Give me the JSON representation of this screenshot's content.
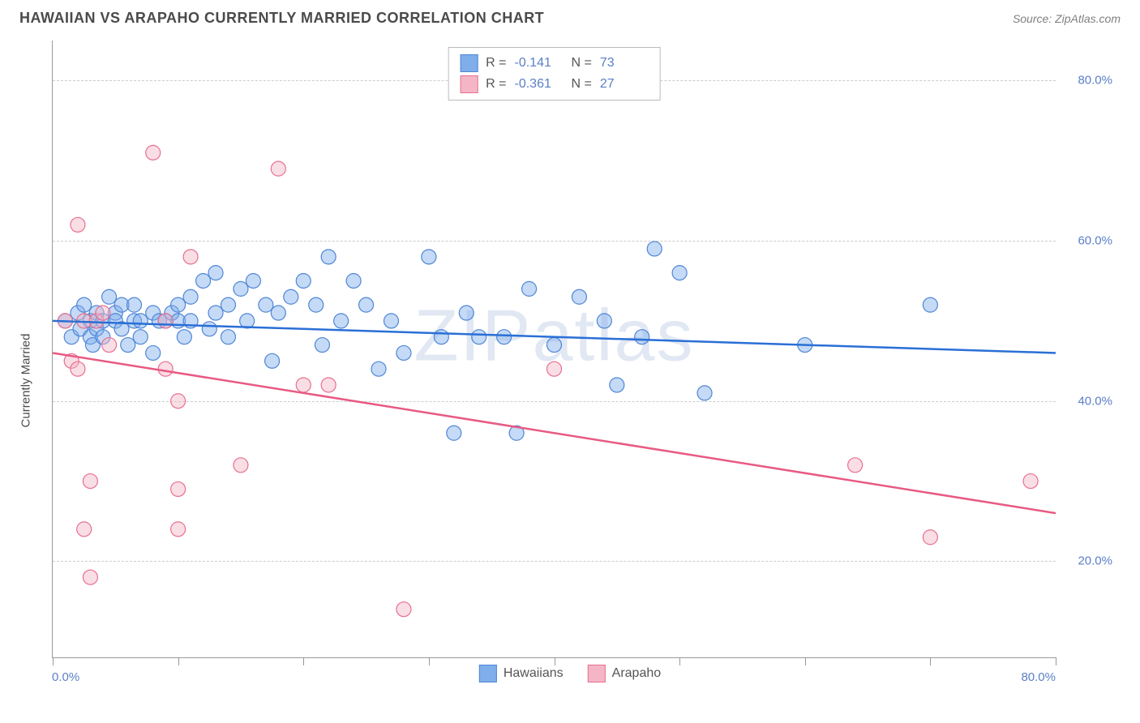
{
  "header": {
    "title": "HAWAIIAN VS ARAPAHO CURRENTLY MARRIED CORRELATION CHART",
    "source": "Source: ZipAtlas.com"
  },
  "watermark": "ZIPatlas",
  "chart": {
    "type": "scatter",
    "y_axis_label": "Currently Married",
    "x_range": [
      0,
      80
    ],
    "y_range": [
      8,
      85
    ],
    "y_ticks": [
      20,
      40,
      60,
      80
    ],
    "y_tick_labels": [
      "20.0%",
      "40.0%",
      "60.0%",
      "80.0%"
    ],
    "x_ticks": [
      0,
      10,
      20,
      30,
      40,
      50,
      60,
      70,
      80
    ],
    "x_axis_min_label": "0.0%",
    "x_axis_max_label": "80.0%",
    "background_color": "#ffffff",
    "grid_color": "#cccccc",
    "axis_color": "#999999",
    "tick_label_color": "#5b7fc7",
    "marker_radius": 9,
    "marker_fill_opacity": 0.45,
    "line_width": 2.5,
    "series": [
      {
        "name": "Hawaiians",
        "color": "#7faeea",
        "stroke": "#4f86d6",
        "line_color": "#2a6fd6",
        "r": "-0.141",
        "n": "73",
        "regression": {
          "x1": 0,
          "y1": 50,
          "x2": 80,
          "y2": 46
        },
        "points": [
          [
            1,
            50
          ],
          [
            1.5,
            48
          ],
          [
            2,
            51
          ],
          [
            2.2,
            49
          ],
          [
            2.5,
            52
          ],
          [
            3,
            50
          ],
          [
            3,
            48
          ],
          [
            3.2,
            47
          ],
          [
            3.5,
            51
          ],
          [
            3.5,
            49
          ],
          [
            4,
            50
          ],
          [
            4,
            48
          ],
          [
            4.5,
            53
          ],
          [
            5,
            51
          ],
          [
            5,
            50
          ],
          [
            5.5,
            49
          ],
          [
            5.5,
            52
          ],
          [
            6,
            47
          ],
          [
            6.5,
            50
          ],
          [
            6.5,
            52
          ],
          [
            7,
            50
          ],
          [
            7,
            48
          ],
          [
            8,
            51
          ],
          [
            8,
            46
          ],
          [
            8.5,
            50
          ],
          [
            9,
            50
          ],
          [
            9.5,
            51
          ],
          [
            10,
            52
          ],
          [
            10,
            50
          ],
          [
            10.5,
            48
          ],
          [
            11,
            53
          ],
          [
            11,
            50
          ],
          [
            12,
            55
          ],
          [
            12.5,
            49
          ],
          [
            13,
            56
          ],
          [
            13,
            51
          ],
          [
            14,
            52
          ],
          [
            14,
            48
          ],
          [
            15,
            54
          ],
          [
            15.5,
            50
          ],
          [
            16,
            55
          ],
          [
            17,
            52
          ],
          [
            17.5,
            45
          ],
          [
            18,
            51
          ],
          [
            19,
            53
          ],
          [
            20,
            55
          ],
          [
            21,
            52
          ],
          [
            21.5,
            47
          ],
          [
            22,
            58
          ],
          [
            23,
            50
          ],
          [
            24,
            55
          ],
          [
            25,
            52
          ],
          [
            26,
            44
          ],
          [
            27,
            50
          ],
          [
            28,
            46
          ],
          [
            30,
            58
          ],
          [
            31,
            48
          ],
          [
            32,
            36
          ],
          [
            33,
            51
          ],
          [
            34,
            48
          ],
          [
            36,
            48
          ],
          [
            37,
            36
          ],
          [
            38,
            54
          ],
          [
            40,
            47
          ],
          [
            42,
            53
          ],
          [
            44,
            50
          ],
          [
            45,
            42
          ],
          [
            47,
            48
          ],
          [
            48,
            59
          ],
          [
            50,
            56
          ],
          [
            52,
            41
          ],
          [
            60,
            47
          ],
          [
            70,
            52
          ]
        ]
      },
      {
        "name": "Arapaho",
        "color": "#f4b6c6",
        "stroke": "#e86f91",
        "line_color": "#e85a82",
        "r": "-0.361",
        "n": "27",
        "regression": {
          "x1": 0,
          "y1": 46,
          "x2": 80,
          "y2": 26
        },
        "points": [
          [
            1,
            50
          ],
          [
            1.5,
            45
          ],
          [
            2,
            44
          ],
          [
            2,
            62
          ],
          [
            2.5,
            50
          ],
          [
            2.5,
            24
          ],
          [
            3,
            30
          ],
          [
            3,
            18
          ],
          [
            3.5,
            50
          ],
          [
            4,
            51
          ],
          [
            4.5,
            47
          ],
          [
            8,
            71
          ],
          [
            9,
            50
          ],
          [
            9,
            44
          ],
          [
            10,
            40
          ],
          [
            10,
            29
          ],
          [
            10,
            24
          ],
          [
            11,
            58
          ],
          [
            15,
            32
          ],
          [
            18,
            69
          ],
          [
            20,
            42
          ],
          [
            22,
            42
          ],
          [
            28,
            14
          ],
          [
            40,
            44
          ],
          [
            64,
            32
          ],
          [
            70,
            23
          ],
          [
            78,
            30
          ]
        ]
      }
    ]
  },
  "legend_top": {
    "r_label": "R  =",
    "n_label": "N  ="
  },
  "legend_bottom": {
    "items": [
      "Hawaiians",
      "Arapaho"
    ]
  }
}
